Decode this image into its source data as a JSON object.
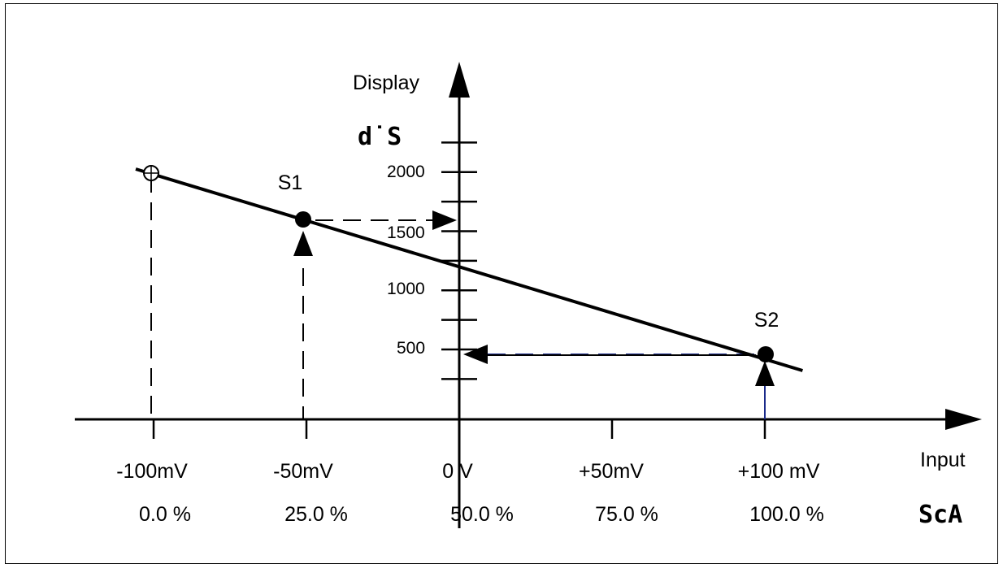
{
  "chart_data": {
    "type": "line",
    "ylabel": "Display",
    "ylabel_code": "d˙S",
    "xlabel": "Input",
    "xlabel_code": "ScA",
    "y_ticks": [
      "2000",
      "1500",
      "1000",
      "500"
    ],
    "x_ticks_mv": [
      "-100mV",
      "-50mV",
      "0 V",
      "+50mV",
      "+100 mV"
    ],
    "x_ticks_pct": [
      "0.0 %",
      "25.0 %",
      "50.0 %",
      "75.0 %",
      "100.0 %"
    ],
    "points": [
      {
        "name": "S1",
        "x_mv": -50,
        "y": 1600
      },
      {
        "name": "S2",
        "x_mv": 100,
        "y": 400
      }
    ],
    "line": {
      "x_range_mv": [
        -100,
        115
      ]
    }
  }
}
